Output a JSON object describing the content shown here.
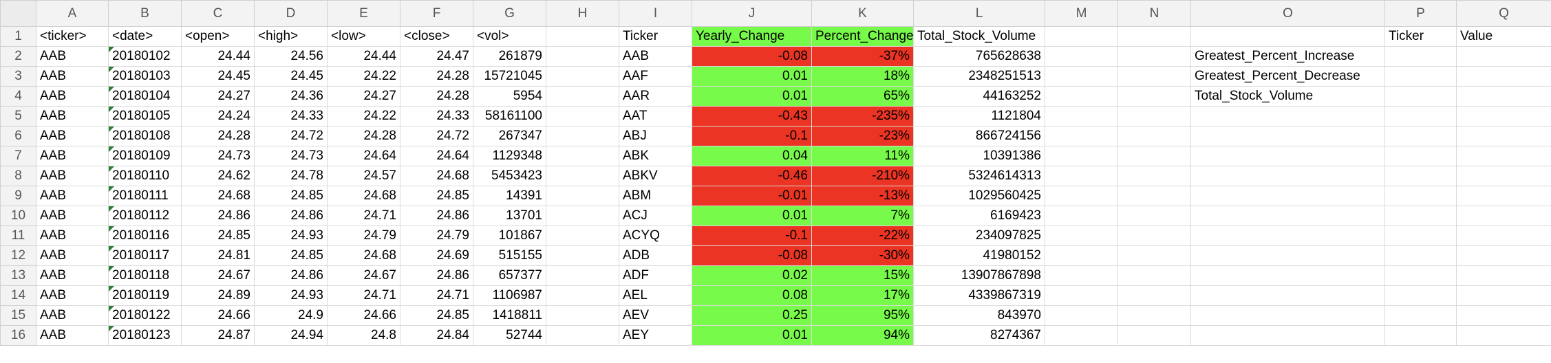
{
  "colors": {
    "positive": "#78fa4a",
    "negative": "#ec3424",
    "header_bg": "#f3f3f3",
    "flag": "#2e7d32"
  },
  "columns": [
    "A",
    "B",
    "C",
    "D",
    "E",
    "F",
    "G",
    "H",
    "I",
    "J",
    "K",
    "L",
    "M",
    "N",
    "O",
    "P",
    "Q"
  ],
  "rows": [
    {
      "n": "1",
      "A": "<ticker>",
      "B": "<date>",
      "C": "<open>",
      "D": "<high>",
      "E": "<low>",
      "F": "<close>",
      "G": "<vol>",
      "H": "",
      "I": "Ticker",
      "J": "Yearly_Change",
      "K": "Percent_Change",
      "L": "Total_Stock_Volume",
      "M": "",
      "N": "",
      "O": "",
      "P": "Ticker",
      "Q": "Value"
    },
    {
      "n": "2",
      "A": "AAB",
      "B": "20180102",
      "C": "24.44",
      "D": "24.56",
      "E": "24.44",
      "F": "24.47",
      "G": "261879",
      "H": "",
      "I": "AAB",
      "J": "-0.08",
      "K": "-37%",
      "L": "765628638",
      "M": "",
      "N": "",
      "O": "Greatest_Percent_Increase",
      "P": "",
      "Q": ""
    },
    {
      "n": "3",
      "A": "AAB",
      "B": "20180103",
      "C": "24.45",
      "D": "24.45",
      "E": "24.22",
      "F": "24.28",
      "G": "15721045",
      "H": "",
      "I": "AAF",
      "J": "0.01",
      "K": "18%",
      "L": "2348251513",
      "M": "",
      "N": "",
      "O": "Greatest_Percent_Decrease",
      "P": "",
      "Q": ""
    },
    {
      "n": "4",
      "A": "AAB",
      "B": "20180104",
      "C": "24.27",
      "D": "24.36",
      "E": "24.27",
      "F": "24.28",
      "G": "5954",
      "H": "",
      "I": "AAR",
      "J": "0.01",
      "K": "65%",
      "L": "44163252",
      "M": "",
      "N": "",
      "O": "Total_Stock_Volume",
      "P": "",
      "Q": ""
    },
    {
      "n": "5",
      "A": "AAB",
      "B": "20180105",
      "C": "24.24",
      "D": "24.33",
      "E": "24.22",
      "F": "24.33",
      "G": "58161100",
      "H": "",
      "I": "AAT",
      "J": "-0.43",
      "K": "-235%",
      "L": "1121804",
      "M": "",
      "N": "",
      "O": "",
      "P": "",
      "Q": ""
    },
    {
      "n": "6",
      "A": "AAB",
      "B": "20180108",
      "C": "24.28",
      "D": "24.72",
      "E": "24.28",
      "F": "24.72",
      "G": "267347",
      "H": "",
      "I": "ABJ",
      "J": "-0.1",
      "K": "-23%",
      "L": "866724156",
      "M": "",
      "N": "",
      "O": "",
      "P": "",
      "Q": ""
    },
    {
      "n": "7",
      "A": "AAB",
      "B": "20180109",
      "C": "24.73",
      "D": "24.73",
      "E": "24.64",
      "F": "24.64",
      "G": "1129348",
      "H": "",
      "I": "ABK",
      "J": "0.04",
      "K": "11%",
      "L": "10391386",
      "M": "",
      "N": "",
      "O": "",
      "P": "",
      "Q": ""
    },
    {
      "n": "8",
      "A": "AAB",
      "B": "20180110",
      "C": "24.62",
      "D": "24.78",
      "E": "24.57",
      "F": "24.68",
      "G": "5453423",
      "H": "",
      "I": "ABKV",
      "J": "-0.46",
      "K": "-210%",
      "L": "5324614313",
      "M": "",
      "N": "",
      "O": "",
      "P": "",
      "Q": ""
    },
    {
      "n": "9",
      "A": "AAB",
      "B": "20180111",
      "C": "24.68",
      "D": "24.85",
      "E": "24.68",
      "F": "24.85",
      "G": "14391",
      "H": "",
      "I": "ABM",
      "J": "-0.01",
      "K": "-13%",
      "L": "1029560425",
      "M": "",
      "N": "",
      "O": "",
      "P": "",
      "Q": ""
    },
    {
      "n": "10",
      "A": "AAB",
      "B": "20180112",
      "C": "24.86",
      "D": "24.86",
      "E": "24.71",
      "F": "24.86",
      "G": "13701",
      "H": "",
      "I": "ACJ",
      "J": "0.01",
      "K": "7%",
      "L": "6169423",
      "M": "",
      "N": "",
      "O": "",
      "P": "",
      "Q": ""
    },
    {
      "n": "11",
      "A": "AAB",
      "B": "20180116",
      "C": "24.85",
      "D": "24.93",
      "E": "24.79",
      "F": "24.79",
      "G": "101867",
      "H": "",
      "I": "ACYQ",
      "J": "-0.1",
      "K": "-22%",
      "L": "234097825",
      "M": "",
      "N": "",
      "O": "",
      "P": "",
      "Q": ""
    },
    {
      "n": "12",
      "A": "AAB",
      "B": "20180117",
      "C": "24.81",
      "D": "24.85",
      "E": "24.68",
      "F": "24.69",
      "G": "515155",
      "H": "",
      "I": "ADB",
      "J": "-0.08",
      "K": "-30%",
      "L": "41980152",
      "M": "",
      "N": "",
      "O": "",
      "P": "",
      "Q": ""
    },
    {
      "n": "13",
      "A": "AAB",
      "B": "20180118",
      "C": "24.67",
      "D": "24.86",
      "E": "24.67",
      "F": "24.86",
      "G": "657377",
      "H": "",
      "I": "ADF",
      "J": "0.02",
      "K": "15%",
      "L": "13907867898",
      "M": "",
      "N": "",
      "O": "",
      "P": "",
      "Q": ""
    },
    {
      "n": "14",
      "A": "AAB",
      "B": "20180119",
      "C": "24.89",
      "D": "24.93",
      "E": "24.71",
      "F": "24.71",
      "G": "1106987",
      "H": "",
      "I": "AEL",
      "J": "0.08",
      "K": "17%",
      "L": "4339867319",
      "M": "",
      "N": "",
      "O": "",
      "P": "",
      "Q": ""
    },
    {
      "n": "15",
      "A": "AAB",
      "B": "20180122",
      "C": "24.66",
      "D": "24.9",
      "E": "24.66",
      "F": "24.85",
      "G": "1418811",
      "H": "",
      "I": "AEV",
      "J": "0.25",
      "K": "95%",
      "L": "843970",
      "M": "",
      "N": "",
      "O": "",
      "P": "",
      "Q": ""
    },
    {
      "n": "16",
      "A": "AAB",
      "B": "20180123",
      "C": "24.87",
      "D": "24.94",
      "E": "24.8",
      "F": "24.84",
      "G": "52744",
      "H": "",
      "I": "AEY",
      "J": "0.01",
      "K": "94%",
      "L": "8274367",
      "M": "",
      "N": "",
      "O": "",
      "P": "",
      "Q": ""
    }
  ]
}
